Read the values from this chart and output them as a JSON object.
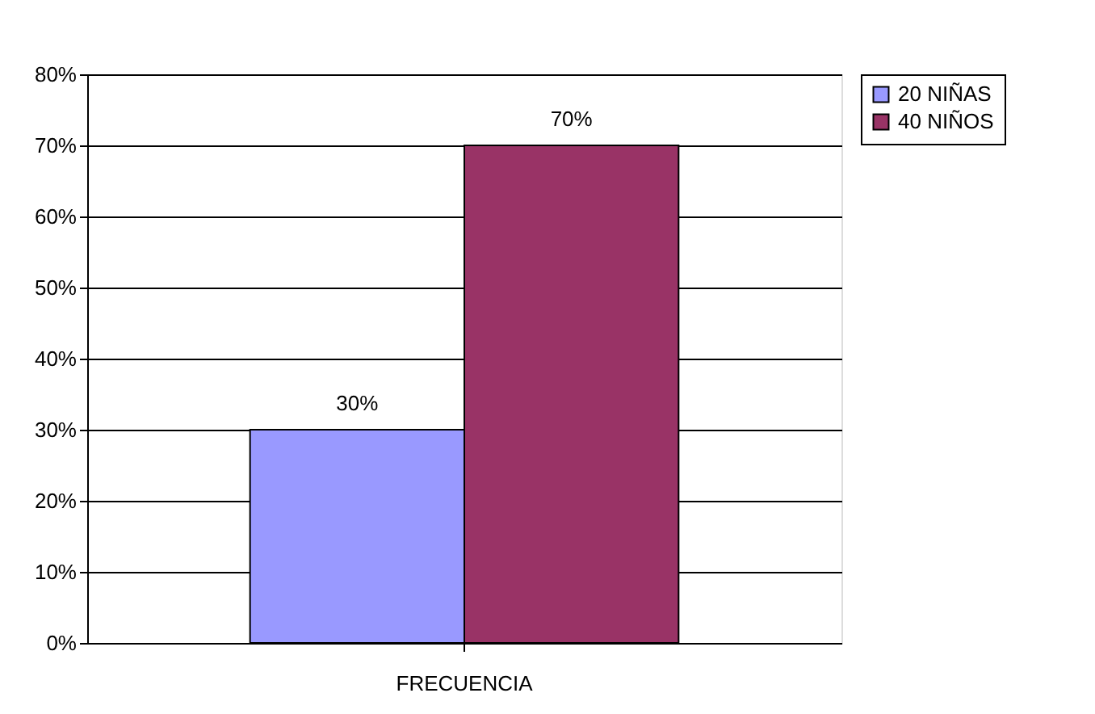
{
  "chart_data": {
    "type": "bar",
    "categories": [
      "FRECUENCIA"
    ],
    "series": [
      {
        "name": "20 NIÑAS",
        "color": "#9999ff",
        "values": [
          30
        ],
        "value_labels": [
          "30%"
        ]
      },
      {
        "name": "40 NIÑOS",
        "color": "#993366",
        "values": [
          70
        ],
        "value_labels": [
          "70%"
        ]
      }
    ],
    "ylim": [
      0,
      80
    ],
    "yticks": [
      {
        "value": 0,
        "label": "0%"
      },
      {
        "value": 10,
        "label": "10%"
      },
      {
        "value": 20,
        "label": "20%"
      },
      {
        "value": 30,
        "label": "30%"
      },
      {
        "value": 40,
        "label": "40%"
      },
      {
        "value": 50,
        "label": "50%"
      },
      {
        "value": 60,
        "label": "60%"
      },
      {
        "value": 70,
        "label": "70%"
      },
      {
        "value": 80,
        "label": "80%"
      }
    ],
    "grid": "y",
    "legend": "right"
  }
}
